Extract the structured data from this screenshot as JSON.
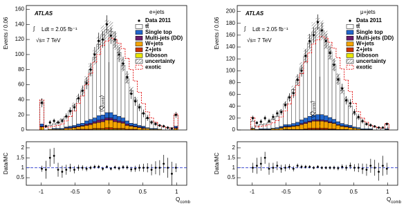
{
  "chart_data": [
    {
      "type": "histogram",
      "channel": "e+jets",
      "atlas": "ATLAS",
      "integral": "∫",
      "lumi": "Ldt = 2.05 fb⁻¹",
      "energy": "√s= 7 TeV",
      "y_label": "Events / 0.06",
      "x_label": [
        "Q",
        "comb"
      ],
      "annotation": [
        "⟨Q",
        "comb",
        "⟩"
      ],
      "annotation_x": 0,
      "bins": [
        -1.02,
        -0.96,
        -0.9,
        -0.84,
        -0.78,
        -0.72,
        -0.66,
        -0.6,
        -0.54,
        -0.48,
        -0.42,
        -0.36,
        -0.3,
        -0.24,
        -0.18,
        -0.12,
        -0.06,
        0,
        0.06,
        0.12,
        0.18,
        0.24,
        0.3,
        0.36,
        0.42,
        0.48,
        0.54,
        0.6,
        0.66,
        0.72,
        0.78,
        0.84,
        0.9,
        0.96,
        1.02
      ],
      "xlim": [
        -1.22,
        1.15
      ],
      "xticks": [
        -1,
        -0.5,
        0,
        0.5,
        1
      ],
      "ylim": [
        0,
        165
      ],
      "yticks": [
        0,
        20,
        40,
        60,
        80,
        100,
        120,
        140,
        160
      ],
      "series": [
        {
          "name": "tt̄",
          "color": "#ffffff",
          "values": [
            29,
            5,
            5,
            6,
            8,
            12,
            14,
            20,
            27,
            34,
            43,
            53,
            66,
            80,
            94,
            106,
            110,
            108,
            98,
            85,
            70,
            56,
            43,
            32,
            25,
            17,
            12,
            9,
            6,
            5,
            4,
            3,
            3,
            15
          ]
        },
        {
          "name": "Single top",
          "color": "#2266cc",
          "values": [
            3,
            0,
            0,
            1,
            1,
            1,
            1,
            2,
            2,
            3,
            3,
            4,
            5,
            5,
            6,
            6,
            7,
            7,
            6,
            6,
            5,
            4,
            3,
            3,
            2,
            2,
            1,
            1,
            1,
            0,
            0,
            0,
            0,
            2
          ]
        },
        {
          "name": "Multi-jets (DD)",
          "color": "#6a1b6a",
          "values": [
            1,
            0,
            0,
            0,
            0,
            0,
            1,
            1,
            1,
            1,
            1,
            2,
            2,
            2,
            3,
            3,
            3,
            3,
            3,
            2,
            2,
            2,
            1,
            1,
            1,
            1,
            0,
            0,
            0,
            0,
            0,
            0,
            0,
            1
          ]
        },
        {
          "name": "W+jets",
          "color": "#f4a400",
          "values": [
            4,
            0,
            1,
            1,
            1,
            1,
            2,
            2,
            3,
            3,
            4,
            5,
            6,
            7,
            8,
            9,
            10,
            10,
            9,
            8,
            7,
            5,
            4,
            3,
            3,
            2,
            2,
            1,
            1,
            1,
            0,
            0,
            0,
            2
          ]
        },
        {
          "name": "Z+jets",
          "color": "#cc3300",
          "values": [
            0,
            0,
            0,
            0,
            0,
            0,
            0,
            0,
            0,
            1,
            1,
            1,
            1,
            1,
            1,
            1,
            2,
            2,
            1,
            1,
            1,
            1,
            1,
            1,
            0,
            0,
            0,
            0,
            0,
            0,
            0,
            0,
            0,
            0
          ]
        },
        {
          "name": "Diboson",
          "color": "#e8e800",
          "values": [
            0,
            0,
            0,
            0,
            0,
            0,
            0,
            0,
            0,
            0,
            0,
            0,
            0,
            1,
            1,
            1,
            1,
            1,
            1,
            1,
            1,
            0,
            0,
            0,
            0,
            0,
            0,
            0,
            0,
            0,
            0,
            0,
            0,
            0
          ]
        }
      ],
      "data": {
        "name": "Data 2011",
        "values": [
          36,
          5,
          10,
          12,
          10,
          12,
          18,
          25,
          30,
          42,
          52,
          62,
          80,
          100,
          118,
          120,
          140,
          125,
          120,
          100,
          88,
          70,
          48,
          38,
          30,
          22,
          16,
          10,
          8,
          6,
          5,
          3,
          2,
          20
        ],
        "errors": [
          6,
          2,
          3,
          3,
          3,
          3,
          4,
          5,
          5,
          6,
          7,
          8,
          9,
          10,
          11,
          11,
          12,
          11,
          11,
          10,
          9,
          8,
          7,
          6,
          5,
          5,
          4,
          3,
          3,
          2,
          2,
          2,
          1,
          4
        ]
      },
      "uncertainty": {
        "name": "uncertainty",
        "relative": 0.1
      },
      "exotic": {
        "name": "exotic",
        "color": "#e00000",
        "values": [
          40,
          3,
          4,
          5,
          6,
          8,
          12,
          18,
          25,
          35,
          45,
          60,
          75,
          90,
          100,
          112,
          118,
          122,
          120,
          115,
          108,
          95,
          80,
          65,
          50,
          35,
          24,
          16,
          10,
          6,
          4,
          3,
          2,
          21
        ]
      },
      "ratio": {
        "y_label": "Data/MC",
        "ylim": [
          0.12,
          2.31
        ],
        "yticks": [
          0.5,
          1,
          1.5,
          2
        ],
        "reference": 1,
        "values": [
          0.95,
          0.9,
          1.5,
          1.6,
          0.9,
          0.8,
          0.9,
          1.0,
          0.9,
          1.0,
          1.0,
          0.95,
          1.0,
          1.05,
          1.05,
          0.95,
          1.05,
          0.95,
          1.02,
          0.97,
          1.03,
          1.02,
          0.92,
          0.95,
          1.0,
          1.0,
          1.0,
          0.9,
          1.0,
          1.0,
          1.2,
          1.0,
          0.7,
          1.0
        ],
        "errors": [
          0.15,
          0.45,
          0.45,
          0.4,
          0.35,
          0.3,
          0.25,
          0.2,
          0.18,
          0.15,
          0.13,
          0.12,
          0.1,
          0.1,
          0.09,
          0.09,
          0.08,
          0.08,
          0.09,
          0.1,
          0.1,
          0.11,
          0.13,
          0.15,
          0.17,
          0.2,
          0.23,
          0.28,
          0.33,
          0.38,
          0.45,
          0.5,
          0.6,
          0.22
        ]
      }
    },
    {
      "type": "histogram",
      "channel": "μ+jets",
      "atlas": "ATLAS",
      "integral": "∫",
      "lumi": "Ldt = 2.05 fb⁻¹",
      "energy": "√s= 7 TeV",
      "y_label": "Events / 0.06",
      "x_label": [
        "Q",
        "comb"
      ],
      "annotation": [
        "⟨Q",
        "comb",
        "⟩"
      ],
      "annotation_x": 0,
      "bins": [
        -1.02,
        -0.96,
        -0.9,
        -0.84,
        -0.78,
        -0.72,
        -0.66,
        -0.6,
        -0.54,
        -0.48,
        -0.42,
        -0.36,
        -0.3,
        -0.24,
        -0.18,
        -0.12,
        -0.06,
        0,
        0.06,
        0.12,
        0.18,
        0.24,
        0.3,
        0.36,
        0.42,
        0.48,
        0.54,
        0.6,
        0.66,
        0.72,
        0.78,
        0.84,
        0.9,
        0.96,
        1.02
      ],
      "xlim": [
        -1.22,
        1.15
      ],
      "xticks": [
        -1,
        -0.5,
        0,
        0.5,
        1
      ],
      "ylim": [
        0,
        210
      ],
      "yticks": [
        0,
        20,
        40,
        60,
        80,
        100,
        120,
        140,
        160,
        180,
        200
      ],
      "series": [
        {
          "name": "tt̄",
          "color": "#ffffff",
          "values": [
            12,
            6,
            7,
            8,
            11,
            15,
            19,
            26,
            35,
            45,
            57,
            70,
            87,
            105,
            124,
            140,
            146,
            142,
            128,
            111,
            92,
            73,
            56,
            42,
            32,
            22,
            16,
            12,
            8,
            6,
            5,
            4,
            3,
            8
          ]
        },
        {
          "name": "Single top",
          "color": "#2266cc",
          "values": [
            1,
            0,
            1,
            1,
            1,
            1,
            2,
            2,
            3,
            3,
            4,
            5,
            6,
            7,
            8,
            8,
            9,
            9,
            8,
            7,
            6,
            5,
            4,
            3,
            3,
            2,
            2,
            1,
            1,
            1,
            0,
            0,
            0,
            1
          ]
        },
        {
          "name": "Multi-jets (DD)",
          "color": "#6a1b6a",
          "values": [
            0,
            0,
            0,
            0,
            0,
            0,
            0,
            1,
            1,
            1,
            1,
            1,
            2,
            2,
            2,
            2,
            2,
            2,
            2,
            2,
            1,
            1,
            1,
            1,
            1,
            0,
            0,
            0,
            0,
            0,
            0,
            0,
            0,
            0
          ]
        },
        {
          "name": "W+jets",
          "color": "#f4a400",
          "values": [
            2,
            1,
            1,
            1,
            1,
            2,
            2,
            3,
            4,
            4,
            5,
            6,
            8,
            9,
            10,
            12,
            12,
            12,
            11,
            10,
            9,
            7,
            5,
            4,
            4,
            3,
            2,
            1,
            1,
            1,
            0,
            0,
            0,
            1
          ]
        },
        {
          "name": "Z+jets",
          "color": "#cc3300",
          "values": [
            0,
            0,
            0,
            0,
            0,
            0,
            0,
            0,
            1,
            1,
            1,
            1,
            1,
            1,
            2,
            2,
            2,
            2,
            2,
            1,
            1,
            1,
            1,
            1,
            0,
            0,
            0,
            0,
            0,
            0,
            0,
            0,
            0,
            0
          ]
        },
        {
          "name": "Diboson",
          "color": "#e8e800",
          "values": [
            0,
            0,
            0,
            0,
            0,
            0,
            0,
            0,
            0,
            0,
            0,
            0,
            0,
            1,
            1,
            1,
            1,
            1,
            1,
            1,
            1,
            0,
            0,
            0,
            0,
            0,
            0,
            0,
            0,
            0,
            0,
            0,
            0,
            0
          ]
        }
      ],
      "data": {
        "name": "Data 2011",
        "values": [
          20,
          12,
          14,
          20,
          15,
          22,
          28,
          30,
          42,
          55,
          62,
          85,
          100,
          125,
          150,
          160,
          182,
          168,
          150,
          130,
          110,
          85,
          70,
          50,
          45,
          30,
          22,
          15,
          10,
          8,
          6,
          4,
          4,
          10
        ],
        "errors": [
          4,
          3,
          4,
          4,
          4,
          5,
          5,
          5,
          6,
          7,
          8,
          9,
          10,
          11,
          12,
          13,
          13,
          13,
          12,
          11,
          10,
          9,
          8,
          7,
          7,
          5,
          5,
          4,
          3,
          3,
          2,
          2,
          2,
          3
        ]
      },
      "uncertainty": {
        "name": "uncertainty",
        "relative": 0.1
      },
      "exotic": {
        "name": "exotic",
        "color": "#e00000",
        "values": [
          21,
          5,
          6,
          7,
          9,
          12,
          16,
          22,
          32,
          44,
          58,
          75,
          95,
          115,
          130,
          145,
          152,
          158,
          155,
          148,
          138,
          122,
          103,
          84,
          65,
          45,
          31,
          20,
          13,
          8,
          5,
          4,
          3,
          11
        ]
      },
      "ratio": {
        "y_label": "Data/MC",
        "ylim": [
          0.12,
          2.31
        ],
        "yticks": [
          0.5,
          1,
          1.5,
          2
        ],
        "reference": 1,
        "values": [
          1.0,
          1.1,
          1.2,
          1.5,
          0.95,
          1.0,
          1.1,
          0.95,
          1.0,
          1.05,
          0.95,
          1.1,
          1.05,
          1.05,
          1.05,
          1.0,
          1.05,
          1.0,
          1.0,
          1.0,
          1.0,
          0.98,
          1.05,
          1.0,
          1.1,
          1.0,
          1.0,
          0.95,
          0.9,
          1.1,
          1.0,
          0.8,
          1.1,
          0.95
        ],
        "errors": [
          0.25,
          0.4,
          0.35,
          0.3,
          0.3,
          0.25,
          0.22,
          0.2,
          0.17,
          0.14,
          0.13,
          0.11,
          0.1,
          0.09,
          0.08,
          0.08,
          0.08,
          0.08,
          0.08,
          0.09,
          0.1,
          0.11,
          0.12,
          0.14,
          0.16,
          0.18,
          0.22,
          0.26,
          0.3,
          0.35,
          0.4,
          0.45,
          0.5,
          0.3
        ]
      }
    }
  ]
}
